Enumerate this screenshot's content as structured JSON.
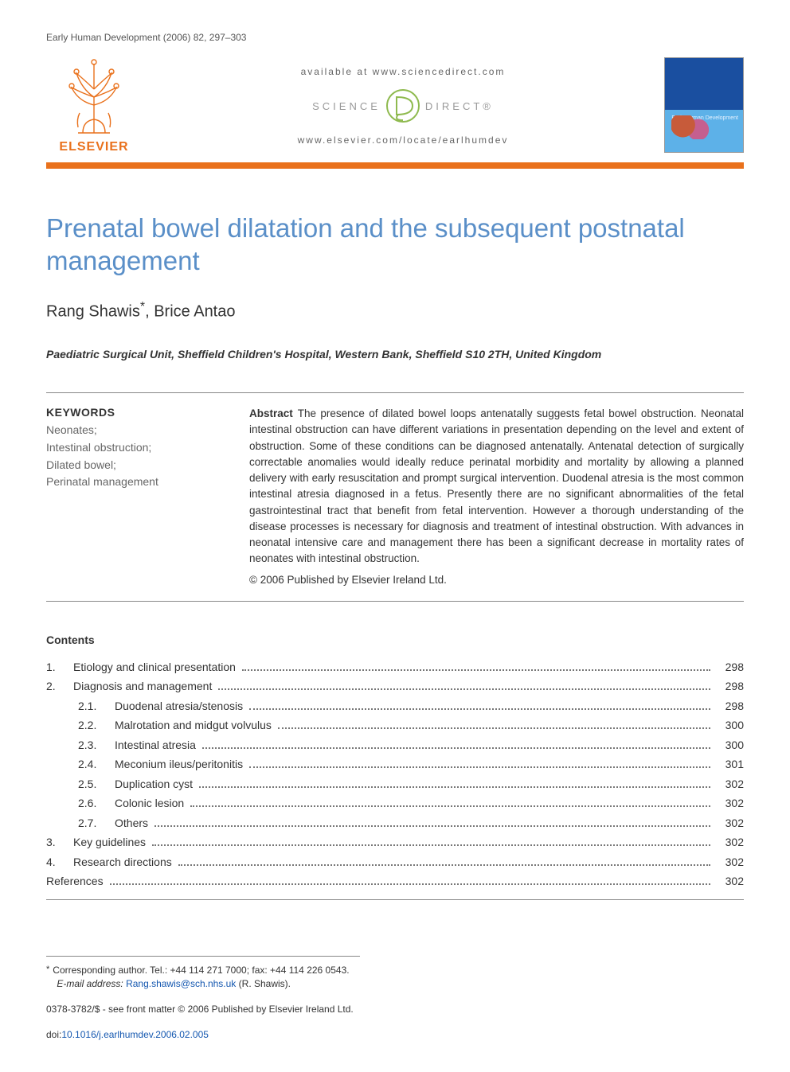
{
  "running_head": "Early Human Development (2006) 82, 297–303",
  "masthead": {
    "available_at": "available at www.sciencedirect.com",
    "sd_left": "SCIENCE",
    "sd_right": "DIRECT®",
    "journal_url": "www.elsevier.com/locate/earlhumdev",
    "elsevier_word": "ELSEVIER",
    "cover_title": "Early Human\nDevelopment",
    "rule_color": "#e9711c",
    "logo_color": "#e9711c",
    "cover_colors": {
      "top": "#1a4fa0",
      "bottom": "#5db1e8"
    }
  },
  "title": "Prenatal bowel dilatation and the subsequent postnatal management",
  "authors_html": {
    "a1": "Rang Shawis",
    "star": "*",
    "sep": ", ",
    "a2": "Brice Antao"
  },
  "affiliation": "Paediatric Surgical Unit, Sheffield Children's Hospital, Western Bank, Sheffield S10 2TH, United Kingdom",
  "keywords": {
    "heading": "KEYWORDS",
    "items": [
      "Neonates;",
      "Intestinal obstruction;",
      "Dilated bowel;",
      "Perinatal management"
    ]
  },
  "abstract": {
    "label": "Abstract",
    "text": "The presence of dilated bowel loops antenatally suggests fetal bowel obstruction. Neonatal intestinal obstruction can have different variations in presentation depending on the level and extent of obstruction. Some of these conditions can be diagnosed antenatally. Antenatal detection of surgically correctable anomalies would ideally reduce perinatal morbidity and mortality by allowing a planned delivery with early resuscitation and prompt surgical intervention. Duodenal atresia is the most common intestinal atresia diagnosed in a fetus. Presently there are no significant abnormalities of the fetal gastrointestinal tract that benefit from fetal intervention. However a thorough understanding of the disease processes is necessary for diagnosis and treatment of intestinal obstruction. With advances in neonatal intensive care and management there has been a significant decrease in mortality rates of neonates with intestinal obstruction.",
    "copyright": "© 2006 Published by Elsevier Ireland Ltd."
  },
  "contents": {
    "heading": "Contents",
    "items": [
      {
        "num": "1.",
        "label": "Etiology and clinical presentation",
        "page": "298",
        "sub": false
      },
      {
        "num": "2.",
        "label": "Diagnosis and management",
        "page": "298",
        "sub": false
      },
      {
        "num": "2.1.",
        "label": "Duodenal atresia/stenosis",
        "page": "298",
        "sub": true
      },
      {
        "num": "2.2.",
        "label": "Malrotation and midgut volvulus",
        "page": "300",
        "sub": true
      },
      {
        "num": "2.3.",
        "label": "Intestinal atresia",
        "page": "300",
        "sub": true
      },
      {
        "num": "2.4.",
        "label": "Meconium ileus/peritonitis",
        "page": "301",
        "sub": true
      },
      {
        "num": "2.5.",
        "label": "Duplication cyst",
        "page": "302",
        "sub": true
      },
      {
        "num": "2.6.",
        "label": "Colonic lesion",
        "page": "302",
        "sub": true
      },
      {
        "num": "2.7.",
        "label": "Others",
        "page": "302",
        "sub": true
      },
      {
        "num": "3.",
        "label": "Key guidelines",
        "page": "302",
        "sub": false
      },
      {
        "num": "4.",
        "label": "Research directions",
        "page": "302",
        "sub": false
      },
      {
        "num": "",
        "label": "References",
        "page": "302",
        "sub": false
      }
    ]
  },
  "footnotes": {
    "star": "*",
    "corr": "Corresponding author. Tel.: +44 114 271 7000; fax: +44 114 226 0543.",
    "email_label": "E-mail address:",
    "email": "Rang.shawis@sch.nhs.uk",
    "email_suffix": "(R. Shawis)."
  },
  "doi": {
    "line1": "0378-3782/$ - see front matter © 2006 Published by Elsevier Ireland Ltd.",
    "prefix": "doi:",
    "link": "10.1016/j.earlhumdev.2006.02.005"
  },
  "colors": {
    "title": "#5a8fc8",
    "link": "#1558b0",
    "text": "#333333",
    "muted": "#666666",
    "rule": "#888888"
  },
  "fonts": {
    "title_pt": 33,
    "authors_pt": 20,
    "body_pt": 14,
    "abstract_pt": 13.5,
    "footnote_pt": 12
  }
}
